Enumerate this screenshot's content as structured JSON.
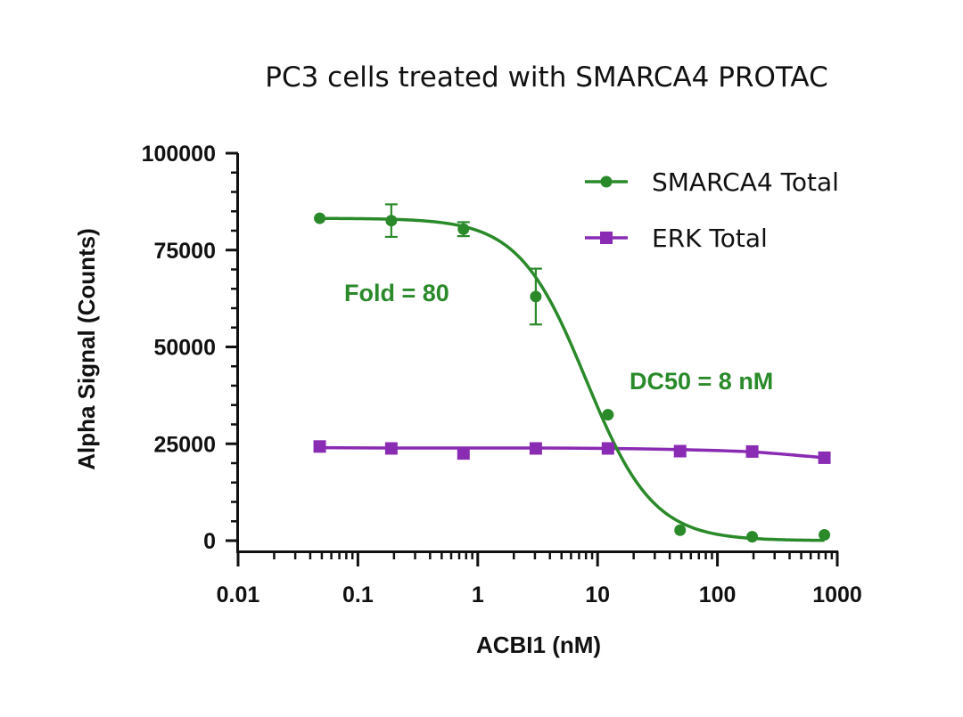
{
  "chart_data": {
    "type": "scatter",
    "title": "PC3 cells treated with SMARCA4 PROTAC",
    "xlabel": "ACBI1 (nM)",
    "ylabel": "Alpha Signal (Counts)",
    "x_scale": "log",
    "xlim": [
      0.01,
      1000
    ],
    "ylim": [
      0,
      100000
    ],
    "x_tick_labels": [
      "0.01",
      "0.1",
      "1",
      "10",
      "100",
      "1000"
    ],
    "x_tick_values": [
      0.01,
      0.1,
      1,
      10,
      100,
      1000
    ],
    "y_tick_labels": [
      "0",
      "25000",
      "50000",
      "75000",
      "100000"
    ],
    "y_tick_values": [
      0,
      25000,
      50000,
      75000,
      100000
    ],
    "legend_position": "top-right",
    "series": [
      {
        "name": "SMARCA4 Total",
        "color": "#2a8a2a",
        "marker": "circle",
        "x": [
          0.048,
          0.19,
          0.76,
          3.05,
          12.2,
          48.8,
          195,
          781
        ],
        "y": [
          83200,
          82600,
          80400,
          63000,
          32500,
          2700,
          1000,
          1500
        ],
        "error": [
          0,
          4200,
          1800,
          7200,
          0,
          0,
          0,
          0
        ],
        "fit": {
          "type": "four-parameter logistic",
          "top": 83200,
          "bottom": 0,
          "ec50": 8,
          "hill": 1.55
        }
      },
      {
        "name": "ERK Total",
        "color": "#8a2bb4",
        "marker": "square",
        "x": [
          0.048,
          0.19,
          0.76,
          3.05,
          12.2,
          48.8,
          195,
          781
        ],
        "y": [
          24300,
          23800,
          22500,
          23800,
          23800,
          23100,
          23000,
          21400
        ],
        "error": [
          0,
          0,
          0,
          0,
          0,
          0,
          0,
          0
        ],
        "fit": {
          "type": "smooth",
          "values": [
            24000,
            23900,
            23900,
            23900,
            23800,
            23500,
            22900,
            21400
          ]
        }
      }
    ],
    "annotations": [
      {
        "text": "Fold = 80",
        "color": "#2a8a2a"
      },
      {
        "text": "DC50 = 8 nM",
        "color": "#2a8a2a"
      }
    ]
  }
}
